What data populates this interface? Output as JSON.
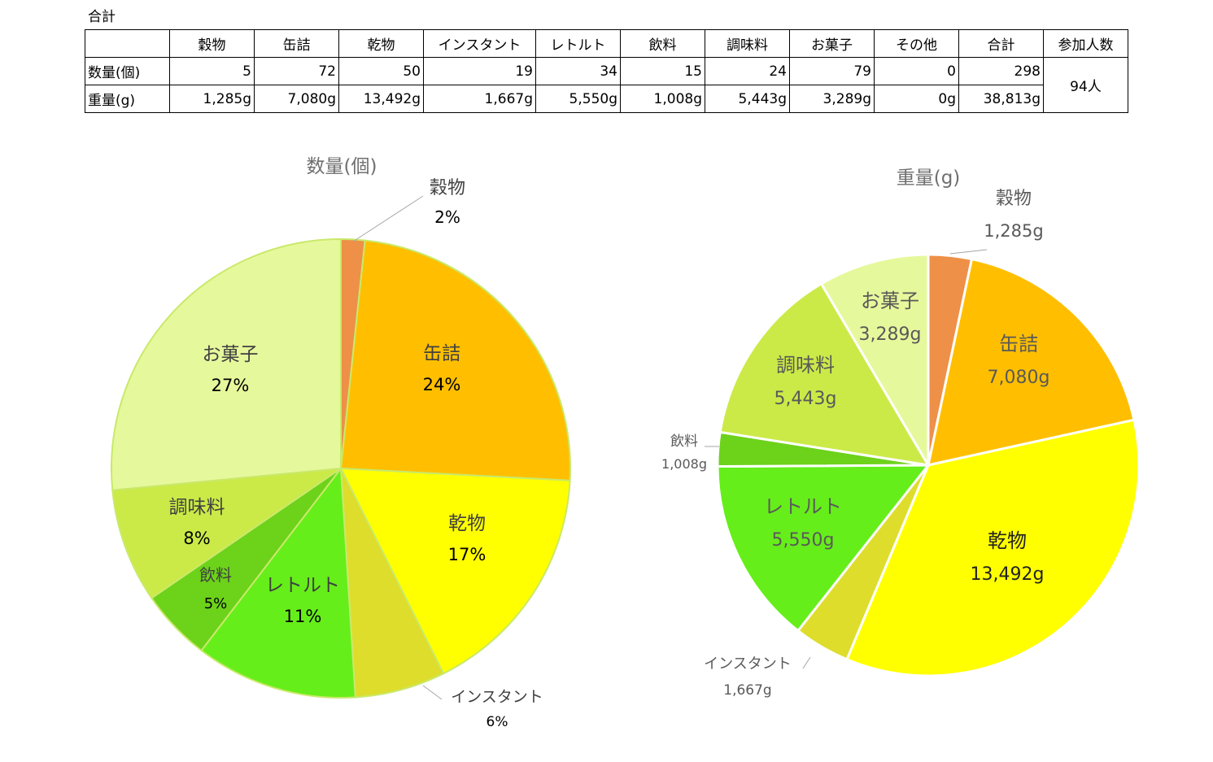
{
  "sheet_title": "合計",
  "table": {
    "headers": [
      "",
      "穀物",
      "缶詰",
      "乾物",
      "インスタント",
      "レトルト",
      "飲料",
      "調味料",
      "お菓子",
      "その他",
      "合計",
      "参加人数"
    ],
    "rows": [
      {
        "label": "数量(個)",
        "values": [
          "5",
          "72",
          "50",
          "19",
          "34",
          "15",
          "24",
          "79",
          "0",
          "298"
        ]
      },
      {
        "label": "重量(g)",
        "values": [
          "1,285g",
          "7,080g",
          "13,492g",
          "1,667g",
          "5,550g",
          "1,008g",
          "5,443g",
          "3,289g",
          "0g",
          "38,813g"
        ]
      }
    ],
    "participants": "94人"
  },
  "chart_data": [
    {
      "type": "pie",
      "title": "数量(個)",
      "categories": [
        "穀物",
        "缶詰",
        "乾物",
        "インスタント",
        "レトルト",
        "飲料",
        "調味料",
        "お菓子"
      ],
      "values": [
        5,
        72,
        50,
        19,
        34,
        15,
        24,
        79
      ],
      "data_labels": [
        "2%",
        "24%",
        "17%",
        "6%",
        "11%",
        "5%",
        "8%",
        "27%"
      ],
      "colors": [
        "#EE9048",
        "#FFBF00",
        "#FFFF00",
        "#DEDD2C",
        "#66EE1A",
        "#6CD21A",
        "#CBEA48",
        "#E6F89C"
      ]
    },
    {
      "type": "pie",
      "title": "重量(g)",
      "categories": [
        "穀物",
        "缶詰",
        "乾物",
        "インスタント",
        "レトルト",
        "飲料",
        "調味料",
        "お菓子"
      ],
      "values": [
        1285,
        7080,
        13492,
        1667,
        5550,
        1008,
        5443,
        3289
      ],
      "data_labels": [
        "1,285g",
        "7,080g",
        "13,492g",
        "1,667g",
        "5,550g",
        "1,008g",
        "5,443g",
        "3,289g"
      ],
      "colors": [
        "#EE9048",
        "#FFBF00",
        "#FFFF00",
        "#DEDD2C",
        "#66EE1A",
        "#6CD21A",
        "#CBEA48",
        "#E6F89C"
      ]
    }
  ]
}
